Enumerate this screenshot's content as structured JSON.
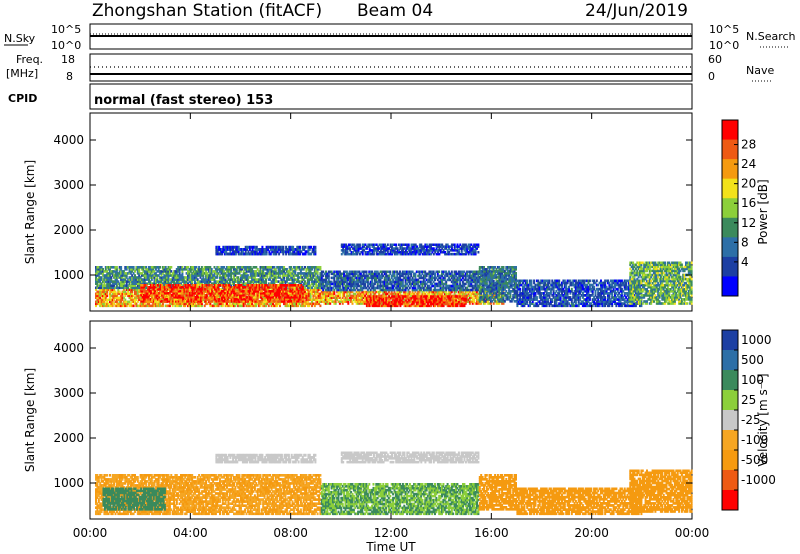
{
  "header": {
    "title": "Zhongshan Station (fitACF)",
    "beam": "Beam 04",
    "date": "24/Jun/2019"
  },
  "nsky_panel": {
    "left_label": "N.Sky",
    "left_ticks": [
      "10^5",
      "10^0"
    ],
    "right_ticks": [
      "10^5",
      "10^0"
    ],
    "right_label": "N.Search"
  },
  "freq_panel": {
    "left_label_1": "Freq.",
    "left_label_2": "[MHz]",
    "left_ticks": [
      "18",
      "8"
    ],
    "right_ticks": [
      "60",
      "0"
    ],
    "right_label": "Nave"
  },
  "cpid_panel": {
    "label": "CPID",
    "text": "normal (fast stereo) 153"
  },
  "colors": {
    "scale_blue": "#0000ff",
    "scale_darkblue": "#1c3fa3",
    "scale_green": "#3b8a5c",
    "scale_lightgreen": "#8ccf3a",
    "scale_yellow": "#f2e21a",
    "scale_orange": "#f59a10",
    "scale_redorange": "#ee5a14",
    "scale_red": "#ff0000",
    "scale_grey": "#c8c8c8",
    "scale_lightorange": "#f5a623"
  },
  "chart_data": [
    {
      "type": "heatmap",
      "name": "power",
      "ylabel": "Slant Range [km]",
      "ylim": [
        200,
        4600
      ],
      "yticks": [
        "1000",
        "2000",
        "3000",
        "4000"
      ],
      "ytick_values": [
        1000,
        2000,
        3000,
        4000
      ],
      "xlim_hours": [
        0,
        24
      ],
      "colorbar": {
        "label": "Power [dB]",
        "ticks": [
          "4",
          "8",
          "12",
          "16",
          "20",
          "24",
          "28"
        ],
        "tick_values": [
          4,
          8,
          12,
          16,
          20,
          24,
          28
        ],
        "range": [
          1,
          31
        ],
        "colors": [
          "#0000ff",
          "#1c3fa3",
          "#2d6fa7",
          "#3b8a5c",
          "#8ccf3a",
          "#f2e21a",
          "#f59a10",
          "#ee5a14",
          "#ff0000"
        ]
      },
      "regions": [
        {
          "t0": 0.2,
          "t1": 9.2,
          "r0": 300,
          "r1": 700,
          "value": 22
        },
        {
          "t0": 0.2,
          "t1": 9.2,
          "r0": 700,
          "r1": 1200,
          "value": 12
        },
        {
          "t0": 2.0,
          "t1": 8.5,
          "r0": 400,
          "r1": 800,
          "value": 28
        },
        {
          "t0": 9.2,
          "t1": 16.5,
          "r0": 350,
          "r1": 650,
          "value": 22
        },
        {
          "t0": 11.0,
          "t1": 15.0,
          "r0": 300,
          "r1": 550,
          "value": 29
        },
        {
          "t0": 9.2,
          "t1": 16.5,
          "r0": 650,
          "r1": 1100,
          "value": 8
        },
        {
          "t0": 5.0,
          "t1": 9.0,
          "r0": 1450,
          "r1": 1650,
          "value": 6
        },
        {
          "t0": 10.0,
          "t1": 15.5,
          "r0": 1450,
          "r1": 1700,
          "value": 6
        },
        {
          "t0": 15.5,
          "t1": 17.0,
          "r0": 400,
          "r1": 1200,
          "value": 10
        },
        {
          "t0": 17.0,
          "t1": 22.0,
          "r0": 300,
          "r1": 900,
          "value": 7
        },
        {
          "t0": 21.5,
          "t1": 24.0,
          "r0": 350,
          "r1": 1300,
          "value": 14
        }
      ]
    },
    {
      "type": "heatmap",
      "name": "velocity",
      "ylabel": "Slant Range [km]",
      "ylim": [
        200,
        4600
      ],
      "yticks": [
        "1000",
        "2000",
        "3000",
        "4000"
      ],
      "ytick_values": [
        1000,
        2000,
        3000,
        4000
      ],
      "xlim_hours": [
        0,
        24
      ],
      "xticks": [
        "00:00",
        "04:00",
        "08:00",
        "12:00",
        "16:00",
        "20:00",
        "00:00"
      ],
      "xtick_values": [
        0,
        4,
        8,
        12,
        16,
        20,
        24
      ],
      "xlabel": "Time UT",
      "colorbar": {
        "label": "Velocity [m s⁻¹]",
        "ticks": [
          "1000",
          "500",
          "100",
          "25",
          "-25",
          "-100",
          "-500",
          "-1000"
        ],
        "colors": [
          "#1c3fa3",
          "#2d6fa7",
          "#3b8a5c",
          "#8ccf3a",
          "#c8c8c8",
          "#f5a623",
          "#f59a10",
          "#ee5a14",
          "#ff0000"
        ]
      },
      "regions": [
        {
          "t0": 0.2,
          "t1": 9.2,
          "r0": 300,
          "r1": 1200,
          "value": -100
        },
        {
          "t0": 0.5,
          "t1": 3.0,
          "r0": 400,
          "r1": 900,
          "value": 200
        },
        {
          "t0": 9.2,
          "t1": 15.5,
          "r0": 300,
          "r1": 1000,
          "value": 100
        },
        {
          "t0": 5.0,
          "t1": 9.0,
          "r0": 1450,
          "r1": 1650,
          "value": 0
        },
        {
          "t0": 10.0,
          "t1": 15.5,
          "r0": 1450,
          "r1": 1700,
          "value": 0
        },
        {
          "t0": 15.5,
          "t1": 17.0,
          "r0": 400,
          "r1": 1200,
          "value": -300
        },
        {
          "t0": 17.0,
          "t1": 22.0,
          "r0": 300,
          "r1": 900,
          "value": -150
        },
        {
          "t0": 21.5,
          "t1": 24.0,
          "r0": 350,
          "r1": 1300,
          "value": -300
        }
      ]
    }
  ]
}
